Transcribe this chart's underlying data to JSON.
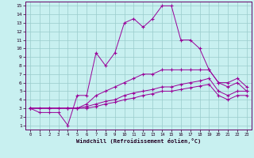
{
  "xlabel": "Windchill (Refroidissement éolien,°C)",
  "bg_color": "#c8f0f0",
  "grid_color": "#99cccc",
  "line_color": "#990099",
  "xlim": [
    -0.5,
    23.5
  ],
  "ylim": [
    0.5,
    15.5
  ],
  "xticks": [
    0,
    1,
    2,
    3,
    4,
    5,
    6,
    7,
    8,
    9,
    10,
    11,
    12,
    13,
    14,
    15,
    16,
    17,
    18,
    19,
    20,
    21,
    22,
    23
  ],
  "yticks": [
    1,
    2,
    3,
    4,
    5,
    6,
    7,
    8,
    9,
    10,
    11,
    12,
    13,
    14,
    15
  ],
  "line_zigzag_x": [
    0,
    1,
    2,
    3,
    4,
    5,
    6,
    7,
    8,
    9,
    10,
    11,
    12,
    13,
    14,
    15,
    16,
    17,
    18,
    19,
    20,
    21,
    22,
    23
  ],
  "line_zigzag_y": [
    3,
    2.5,
    2.5,
    2.5,
    1,
    4.5,
    4.5,
    9.5,
    8.0,
    9.5,
    13.0,
    13.5,
    12.5,
    13.5,
    15.0,
    15.0,
    11.0,
    11.0,
    10.0,
    7.5,
    6.0,
    5.5,
    6.0,
    5.0
  ],
  "line_upper_x": [
    0,
    1,
    2,
    3,
    4,
    5,
    6,
    7,
    8,
    9,
    10,
    11,
    12,
    13,
    14,
    15,
    16,
    17,
    18,
    19,
    20,
    21,
    22,
    23
  ],
  "line_upper_y": [
    3.0,
    3.0,
    3.0,
    3.0,
    3.0,
    3.0,
    3.5,
    4.5,
    5.0,
    5.5,
    6.0,
    6.5,
    7.0,
    7.0,
    7.5,
    7.5,
    7.5,
    7.5,
    7.5,
    7.5,
    6.0,
    6.0,
    6.5,
    5.5
  ],
  "line_mid_x": [
    0,
    2,
    4,
    5,
    6,
    7,
    8,
    9,
    10,
    11,
    12,
    13,
    14,
    15,
    16,
    17,
    18,
    19,
    20,
    21,
    22,
    23
  ],
  "line_mid_y": [
    3.0,
    3.0,
    3.0,
    3.0,
    3.2,
    3.5,
    3.8,
    4.0,
    4.5,
    4.8,
    5.0,
    5.2,
    5.5,
    5.5,
    5.8,
    6.0,
    6.2,
    6.5,
    5.0,
    4.5,
    5.0,
    5.0
  ],
  "line_lower_x": [
    0,
    2,
    4,
    5,
    6,
    7,
    8,
    9,
    10,
    11,
    12,
    13,
    14,
    15,
    16,
    17,
    18,
    19,
    20,
    21,
    22,
    23
  ],
  "line_lower_y": [
    3.0,
    3.0,
    3.0,
    3.0,
    3.0,
    3.2,
    3.5,
    3.7,
    4.0,
    4.2,
    4.5,
    4.7,
    5.0,
    5.0,
    5.2,
    5.4,
    5.6,
    5.8,
    4.5,
    4.0,
    4.5,
    4.5
  ]
}
